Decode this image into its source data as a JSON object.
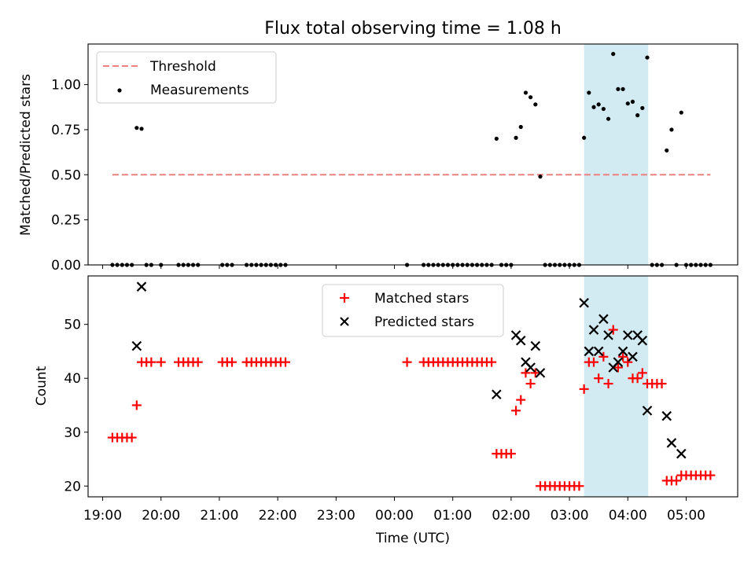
{
  "chart_data": [
    {
      "type": "scatter",
      "title": "Flux total observing time = 1.08 h",
      "xlabel": "",
      "ylabel": "Matched/Predicted stars",
      "ylim": [
        0,
        1.225
      ],
      "yticks": [
        0.0,
        0.25,
        0.5,
        0.75,
        1.0
      ],
      "ytick_labels": [
        "0.00",
        "0.25",
        "0.50",
        "0.75",
        "1.00"
      ],
      "legend_position": "top-left",
      "shaded_interval": [
        "03:15",
        "04:21"
      ],
      "threshold": {
        "name": "Threshold",
        "value": 0.5,
        "x_start": "19:10",
        "x_end": "05:25",
        "color": "#f08080",
        "style": "dashed"
      },
      "series": [
        {
          "name": "Measurements",
          "color": "#000000",
          "points": [
            [
              "19:10",
              0.0
            ],
            [
              "19:15",
              0.0
            ],
            [
              "19:20",
              0.0
            ],
            [
              "19:25",
              0.0
            ],
            [
              "19:30",
              0.0
            ],
            [
              "19:35",
              0.76
            ],
            [
              "19:40",
              0.755
            ],
            [
              "19:45",
              0.0
            ],
            [
              "19:50",
              0.0
            ],
            [
              "20:00",
              0.0
            ],
            [
              "20:18",
              0.0
            ],
            [
              "20:23",
              0.0
            ],
            [
              "20:28",
              0.0
            ],
            [
              "20:33",
              0.0
            ],
            [
              "20:38",
              0.0
            ],
            [
              "21:03",
              0.0
            ],
            [
              "21:08",
              0.0
            ],
            [
              "21:13",
              0.0
            ],
            [
              "21:28",
              0.0
            ],
            [
              "21:33",
              0.0
            ],
            [
              "21:38",
              0.0
            ],
            [
              "21:43",
              0.0
            ],
            [
              "21:48",
              0.0
            ],
            [
              "21:53",
              0.0
            ],
            [
              "21:58",
              0.0
            ],
            [
              "22:03",
              0.0
            ],
            [
              "22:08",
              0.0
            ],
            [
              "00:13",
              0.0
            ],
            [
              "00:30",
              0.0
            ],
            [
              "00:35",
              0.0
            ],
            [
              "00:40",
              0.0
            ],
            [
              "00:45",
              0.0
            ],
            [
              "00:50",
              0.0
            ],
            [
              "00:55",
              0.0
            ],
            [
              "01:00",
              0.0
            ],
            [
              "01:05",
              0.0
            ],
            [
              "01:10",
              0.0
            ],
            [
              "01:15",
              0.0
            ],
            [
              "01:20",
              0.0
            ],
            [
              "01:25",
              0.0
            ],
            [
              "01:30",
              0.0
            ],
            [
              "01:35",
              0.0
            ],
            [
              "01:40",
              0.0
            ],
            [
              "01:45",
              0.7
            ],
            [
              "01:50",
              0.0
            ],
            [
              "01:55",
              0.0
            ],
            [
              "02:00",
              0.0
            ],
            [
              "02:05",
              0.705
            ],
            [
              "02:10",
              0.765
            ],
            [
              "02:15",
              0.955
            ],
            [
              "02:20",
              0.93
            ],
            [
              "02:25",
              0.89
            ],
            [
              "02:30",
              0.49
            ],
            [
              "02:35",
              0.0
            ],
            [
              "02:40",
              0.0
            ],
            [
              "02:45",
              0.0
            ],
            [
              "02:50",
              0.0
            ],
            [
              "02:55",
              0.0
            ],
            [
              "03:00",
              0.0
            ],
            [
              "03:05",
              0.0
            ],
            [
              "03:10",
              0.0
            ],
            [
              "03:15",
              0.705
            ],
            [
              "03:20",
              0.955
            ],
            [
              "03:25",
              0.875
            ],
            [
              "03:30",
              0.89
            ],
            [
              "03:35",
              0.865
            ],
            [
              "03:40",
              0.81
            ],
            [
              "03:45",
              1.17
            ],
            [
              "03:50",
              0.975
            ],
            [
              "03:55",
              0.975
            ],
            [
              "04:00",
              0.895
            ],
            [
              "04:05",
              0.905
            ],
            [
              "04:10",
              0.83
            ],
            [
              "04:15",
              0.87
            ],
            [
              "04:20",
              1.15
            ],
            [
              "04:25",
              0.0
            ],
            [
              "04:30",
              0.0
            ],
            [
              "04:35",
              0.0
            ],
            [
              "04:40",
              0.635
            ],
            [
              "04:45",
              0.75
            ],
            [
              "04:50",
              0.0
            ],
            [
              "04:55",
              0.845
            ],
            [
              "05:00",
              0.0
            ],
            [
              "05:05",
              0.0
            ],
            [
              "05:10",
              0.0
            ],
            [
              "05:15",
              0.0
            ],
            [
              "05:20",
              0.0
            ],
            [
              "05:25",
              0.0
            ]
          ]
        }
      ]
    },
    {
      "type": "scatter",
      "title": "",
      "xlabel": "Time (UTC)",
      "ylabel": "Count",
      "ylim": [
        18,
        59
      ],
      "yticks": [
        20,
        30,
        40,
        50
      ],
      "ytick_labels": [
        "20",
        "30",
        "40",
        "50"
      ],
      "xticks": [
        "19:00",
        "20:00",
        "21:00",
        "22:00",
        "23:00",
        "00:00",
        "01:00",
        "02:00",
        "03:00",
        "04:00",
        "05:00"
      ],
      "legend_position": "top-center",
      "shaded_interval": [
        "03:15",
        "04:21"
      ],
      "series": [
        {
          "name": "Matched stars",
          "marker": "plus",
          "color": "#ff0000",
          "points": [
            [
              "19:10",
              29
            ],
            [
              "19:15",
              29
            ],
            [
              "19:20",
              29
            ],
            [
              "19:25",
              29
            ],
            [
              "19:30",
              29
            ],
            [
              "19:35",
              35
            ],
            [
              "19:40",
              43
            ],
            [
              "19:45",
              43
            ],
            [
              "19:50",
              43
            ],
            [
              "20:00",
              43
            ],
            [
              "20:18",
              43
            ],
            [
              "20:23",
              43
            ],
            [
              "20:28",
              43
            ],
            [
              "20:33",
              43
            ],
            [
              "20:38",
              43
            ],
            [
              "21:03",
              43
            ],
            [
              "21:08",
              43
            ],
            [
              "21:13",
              43
            ],
            [
              "21:28",
              43
            ],
            [
              "21:33",
              43
            ],
            [
              "21:38",
              43
            ],
            [
              "21:43",
              43
            ],
            [
              "21:48",
              43
            ],
            [
              "21:53",
              43
            ],
            [
              "21:58",
              43
            ],
            [
              "22:03",
              43
            ],
            [
              "22:08",
              43
            ],
            [
              "00:13",
              43
            ],
            [
              "00:30",
              43
            ],
            [
              "00:35",
              43
            ],
            [
              "00:40",
              43
            ],
            [
              "00:45",
              43
            ],
            [
              "00:50",
              43
            ],
            [
              "00:55",
              43
            ],
            [
              "01:00",
              43
            ],
            [
              "01:05",
              43
            ],
            [
              "01:10",
              43
            ],
            [
              "01:15",
              43
            ],
            [
              "01:20",
              43
            ],
            [
              "01:25",
              43
            ],
            [
              "01:30",
              43
            ],
            [
              "01:35",
              43
            ],
            [
              "01:40",
              43
            ],
            [
              "01:45",
              26
            ],
            [
              "01:50",
              26
            ],
            [
              "01:55",
              26
            ],
            [
              "02:00",
              26
            ],
            [
              "02:05",
              34
            ],
            [
              "02:10",
              36
            ],
            [
              "02:15",
              41
            ],
            [
              "02:20",
              39
            ],
            [
              "02:25",
              41
            ],
            [
              "02:30",
              20
            ],
            [
              "02:35",
              20
            ],
            [
              "02:40",
              20
            ],
            [
              "02:45",
              20
            ],
            [
              "02:50",
              20
            ],
            [
              "02:55",
              20
            ],
            [
              "03:00",
              20
            ],
            [
              "03:05",
              20
            ],
            [
              "03:10",
              20
            ],
            [
              "03:15",
              38
            ],
            [
              "03:20",
              43
            ],
            [
              "03:25",
              43
            ],
            [
              "03:30",
              40
            ],
            [
              "03:35",
              44
            ],
            [
              "03:40",
              39
            ],
            [
              "03:45",
              49
            ],
            [
              "03:50",
              42
            ],
            [
              "03:55",
              44
            ],
            [
              "04:00",
              43
            ],
            [
              "04:05",
              40
            ],
            [
              "04:10",
              40
            ],
            [
              "04:15",
              41
            ],
            [
              "04:20",
              39
            ],
            [
              "04:25",
              39
            ],
            [
              "04:30",
              39
            ],
            [
              "04:35",
              39
            ],
            [
              "04:40",
              21
            ],
            [
              "04:45",
              21
            ],
            [
              "04:50",
              21
            ],
            [
              "04:55",
              22
            ],
            [
              "05:00",
              22
            ],
            [
              "05:05",
              22
            ],
            [
              "05:10",
              22
            ],
            [
              "05:15",
              22
            ],
            [
              "05:20",
              22
            ],
            [
              "05:25",
              22
            ]
          ]
        },
        {
          "name": "Predicted stars",
          "marker": "x",
          "color": "#000000",
          "points": [
            [
              "19:35",
              46
            ],
            [
              "19:40",
              57
            ],
            [
              "01:45",
              37
            ],
            [
              "02:05",
              48
            ],
            [
              "02:10",
              47
            ],
            [
              "02:15",
              43
            ],
            [
              "02:20",
              42
            ],
            [
              "02:25",
              46
            ],
            [
              "02:30",
              41
            ],
            [
              "03:15",
              54
            ],
            [
              "03:20",
              45
            ],
            [
              "03:25",
              49
            ],
            [
              "03:30",
              45
            ],
            [
              "03:35",
              51
            ],
            [
              "03:40",
              48
            ],
            [
              "03:45",
              42
            ],
            [
              "03:50",
              43
            ],
            [
              "03:55",
              45
            ],
            [
              "04:00",
              48
            ],
            [
              "04:05",
              44
            ],
            [
              "04:10",
              48
            ],
            [
              "04:15",
              47
            ],
            [
              "04:20",
              34
            ],
            [
              "04:40",
              33
            ],
            [
              "04:45",
              28
            ],
            [
              "04:55",
              26
            ]
          ]
        }
      ]
    }
  ]
}
